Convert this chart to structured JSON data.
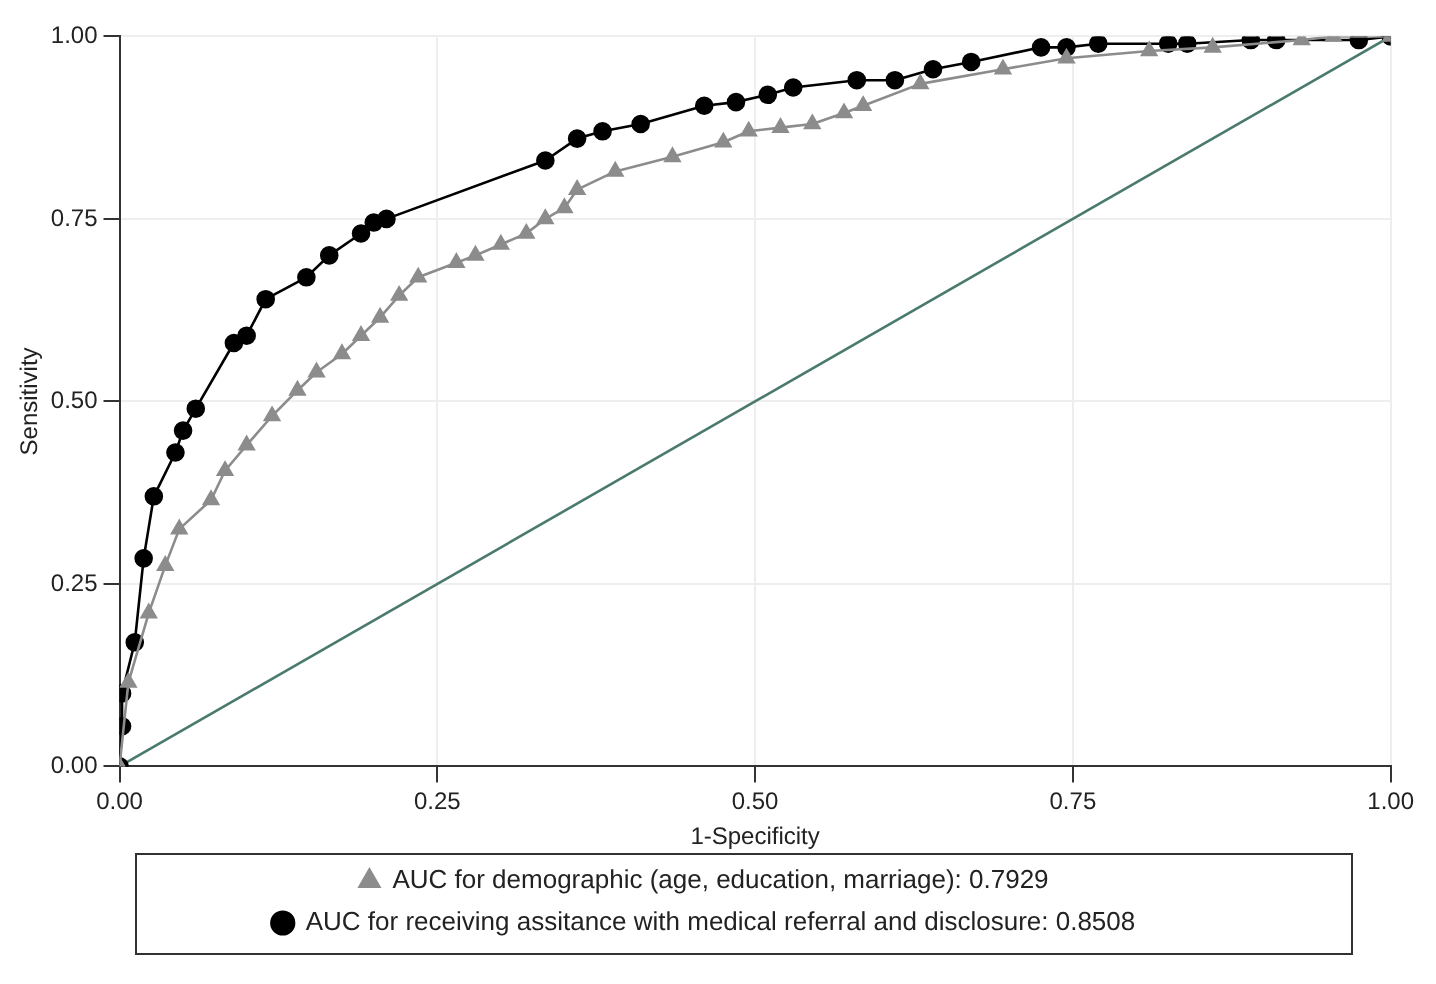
{
  "chart_data": {
    "type": "line",
    "xlabel": "1-Specificity",
    "ylabel": "Sensitivity",
    "xlim": [
      0,
      1
    ],
    "ylim": [
      0,
      1
    ],
    "xticks": [
      {
        "value": 0,
        "label": "0.00"
      },
      {
        "value": 0.25,
        "label": "0.25"
      },
      {
        "value": 0.5,
        "label": "0.50"
      },
      {
        "value": 0.75,
        "label": "0.75"
      },
      {
        "value": 1,
        "label": "1.00"
      }
    ],
    "yticks": [
      {
        "value": 0,
        "label": "0.00"
      },
      {
        "value": 0.25,
        "label": "0.25"
      },
      {
        "value": 0.5,
        "label": "0.50"
      },
      {
        "value": 0.75,
        "label": "0.75"
      },
      {
        "value": 1,
        "label": "1.00"
      }
    ],
    "grid": true,
    "legend": "bottom",
    "line_style": "solid",
    "series": [
      {
        "name": "AUC for demographic (age, education, marriage): 0.7929",
        "color": "#8c8c8c",
        "marker": "triangle",
        "x": [
          0,
          0.007,
          0.023,
          0.036,
          0.047,
          0.072,
          0.083,
          0.1,
          0.12,
          0.14,
          0.155,
          0.175,
          0.19,
          0.205,
          0.22,
          0.235,
          0.265,
          0.28,
          0.3,
          0.32,
          0.335,
          0.35,
          0.36,
          0.39,
          0.435,
          0.475,
          0.495,
          0.52,
          0.545,
          0.57,
          0.585,
          0.63,
          0.695,
          0.745,
          0.81,
          0.86,
          0.93,
          0.955,
          1
        ],
        "values": [
          0,
          0.115,
          0.21,
          0.275,
          0.325,
          0.365,
          0.405,
          0.44,
          0.48,
          0.515,
          0.54,
          0.565,
          0.59,
          0.615,
          0.645,
          0.67,
          0.69,
          0.7,
          0.715,
          0.73,
          0.75,
          0.765,
          0.79,
          0.815,
          0.835,
          0.855,
          0.87,
          0.875,
          0.88,
          0.895,
          0.905,
          0.935,
          0.955,
          0.97,
          0.98,
          0.985,
          0.995,
          1,
          1
        ]
      },
      {
        "name": "AUC for receiving assitance with medical referral and disclosure: 0.8508",
        "color": "#000000",
        "marker": "circle",
        "x": [
          0,
          0.002,
          0.002,
          0.012,
          0.019,
          0.027,
          0.044,
          0.05,
          0.06,
          0.09,
          0.1,
          0.115,
          0.147,
          0.165,
          0.19,
          0.2,
          0.21,
          0.335,
          0.36,
          0.38,
          0.41,
          0.46,
          0.485,
          0.51,
          0.53,
          0.58,
          0.61,
          0.64,
          0.67,
          0.725,
          0.745,
          0.77,
          0.825,
          0.84,
          0.89,
          0.91,
          0.975,
          1
        ],
        "values": [
          0,
          0.055,
          0.1,
          0.17,
          0.285,
          0.37,
          0.43,
          0.46,
          0.49,
          0.58,
          0.59,
          0.64,
          0.67,
          0.7,
          0.73,
          0.745,
          0.75,
          0.83,
          0.86,
          0.87,
          0.88,
          0.905,
          0.91,
          0.92,
          0.93,
          0.94,
          0.94,
          0.955,
          0.965,
          0.985,
          0.985,
          0.99,
          0.99,
          0.99,
          0.995,
          0.995,
          0.995,
          1
        ]
      },
      {
        "color": "#4a7a6e",
        "marker": "none",
        "x": [
          0,
          1
        ],
        "values": [
          0,
          1
        ]
      }
    ]
  }
}
